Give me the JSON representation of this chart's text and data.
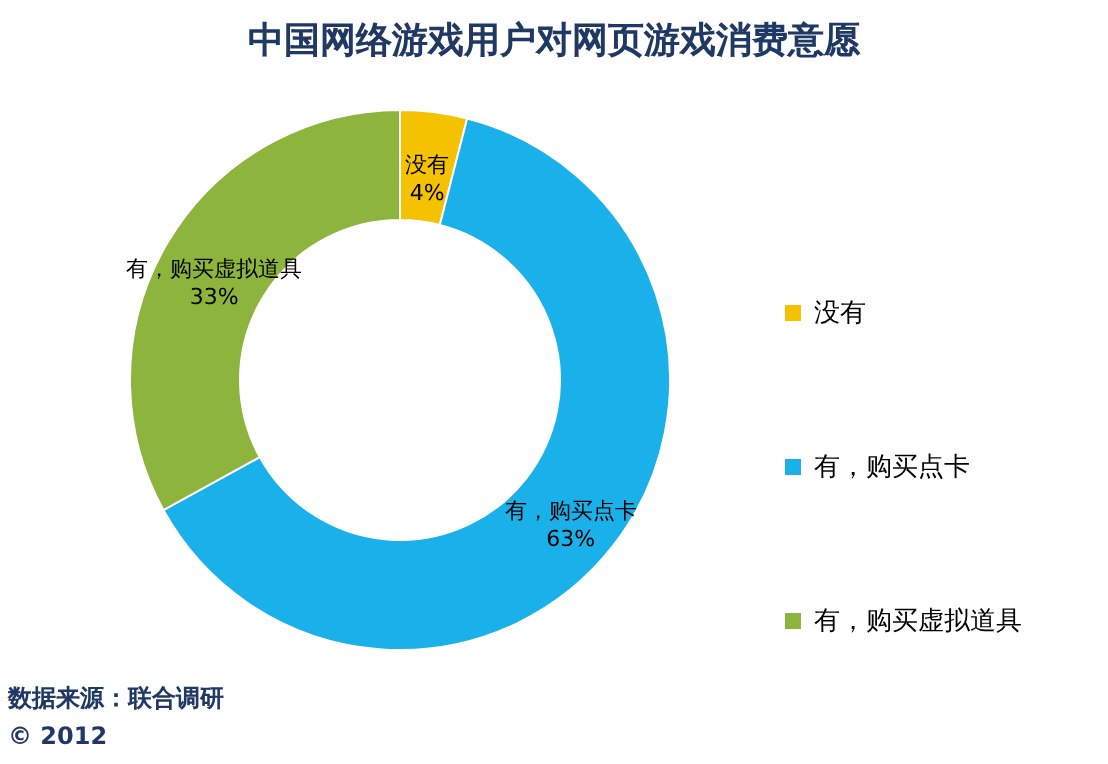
{
  "chart_data": {
    "type": "donut",
    "title": "中国网络游戏用户对网页游戏消费意愿",
    "categories": [
      "没有",
      "有，购买点卡",
      "有，购买虚拟道具"
    ],
    "values": [
      4,
      63,
      33
    ],
    "value_labels": [
      "4%",
      "63%",
      "33%"
    ],
    "colors": [
      "#f5c200",
      "#1ab0ea",
      "#8db43c"
    ],
    "legend": "right",
    "annotations": [
      "数据来源：联合调研",
      "© 2012"
    ]
  }
}
